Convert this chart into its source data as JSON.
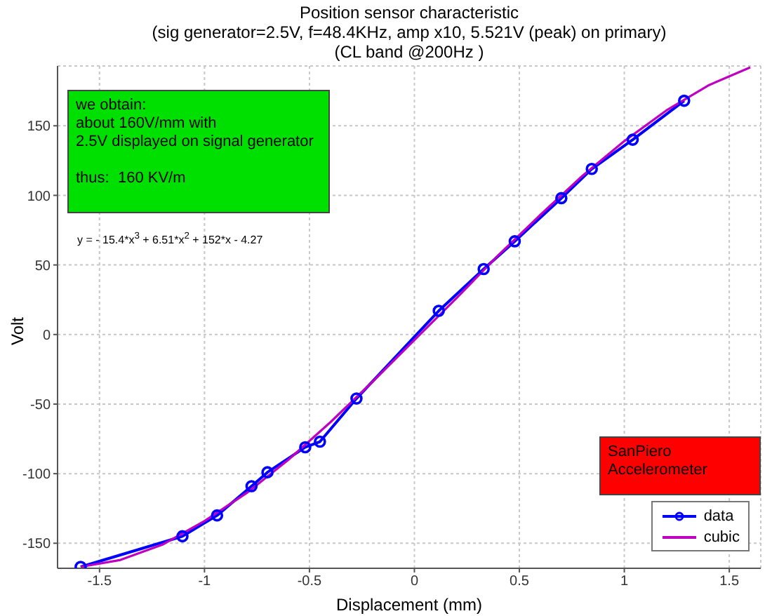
{
  "chart_data": {
    "type": "line",
    "title": "Position sensor characteristic",
    "subtitle": "(sig generator=2.5V, f=48.4KHz, amp x10, 5.521V (peak) on primary)\n(CL band @200Hz )",
    "xlabel": "Displacement (mm)",
    "ylabel": "Volt",
    "annotations": [
      "we obtain:\nabout 160V/mm with\n2.5V displayed on signal generator\n\nthus:  160 KV/m",
      "y = - 15.4*x$^{3}$ + 6.51*x$^{2}$ + 152*x - 4.27",
      "SanPiero\nAccelerometer"
    ],
    "series": [
      {
        "name": "data",
        "color": "#0000ff",
        "marker": "circle",
        "x": [
          -1.59,
          -1.105,
          -0.94,
          -0.776,
          -0.7,
          -0.52,
          -0.45,
          -0.276,
          0.116,
          0.33,
          0.478,
          0.7,
          0.845,
          1.04,
          1.285
        ],
        "values": [
          -167,
          -145,
          -130,
          -109,
          -99,
          -81,
          -77,
          -46,
          17,
          47,
          67,
          98,
          119,
          140,
          168
        ]
      },
      {
        "name": "cubic",
        "color": "#c000c0",
        "marker": "none",
        "x": [
          -1.59,
          -1.4,
          -1.2,
          -1.0,
          -0.8,
          -0.6,
          -0.4,
          -0.2,
          0,
          0.2,
          0.4,
          0.6,
          0.8,
          1.0,
          1.2,
          1.4,
          1.6
        ],
        "values": [
          -167,
          -162,
          -151,
          -134,
          -114,
          -90,
          -63,
          -34,
          -4,
          26,
          57,
          86,
          114,
          139,
          161,
          179,
          192
        ]
      }
    ],
    "xlim": [
      -1.7,
      1.65
    ],
    "xticks": [
      -1.5,
      -1,
      -0.5,
      0,
      0.5,
      1,
      1.5
    ],
    "ylim": [
      -168,
      193
    ],
    "yticks": [
      -150,
      -100,
      -50,
      0,
      50,
      100,
      150
    ],
    "grid": true,
    "legend": "bottom right",
    "line_style": "solid"
  }
}
